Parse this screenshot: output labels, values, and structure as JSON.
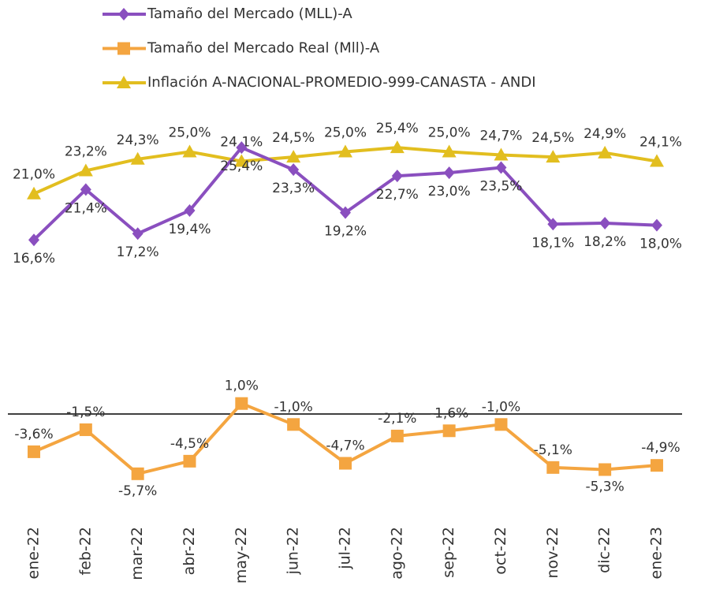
{
  "chart_data": {
    "type": "line",
    "categories": [
      "ene-22",
      "feb-22",
      "mar-22",
      "abr-22",
      "may-22",
      "jun-22",
      "jul-22",
      "ago-22",
      "sep-22",
      "oct-22",
      "nov-22",
      "dic-22",
      "ene-23"
    ],
    "ylim": [
      -10,
      30
    ],
    "series": [
      {
        "name": "Tamaño del Mercado (MLL)-A",
        "color": "#8a4fbf",
        "marker": "diamond",
        "values": [
          16.6,
          21.4,
          17.2,
          19.4,
          25.4,
          23.3,
          19.2,
          22.7,
          23.0,
          23.5,
          18.1,
          18.2,
          18.0
        ],
        "value_labels": [
          "16,6%",
          "21,4%",
          "17,2%",
          "19,4%",
          "25,4%",
          "23,3%",
          "19,2%",
          "22,7%",
          "23,0%",
          "23,5%",
          "18,1%",
          "18,2%",
          "18,0%"
        ]
      },
      {
        "name": "Tamaño del Mercado Real (Mll)-A",
        "color": "#f4a540",
        "marker": "square",
        "values": [
          -3.6,
          -1.5,
          -5.7,
          -4.5,
          1.0,
          -1.0,
          -4.7,
          -2.1,
          -1.6,
          -1.0,
          -5.1,
          -5.3,
          -4.9
        ],
        "value_labels": [
          "-3,6%",
          "-1,5%",
          "-5,7%",
          "-4,5%",
          "1,0%",
          "-1,0%",
          "-4,7%",
          "-2,1%",
          "-1,6%",
          "-1,0%",
          "-5,1%",
          "-5,3%",
          "-4,9%"
        ]
      },
      {
        "name": "Inflación A-NACIONAL-PROMEDIO-999-CANASTA - ANDI",
        "color": "#e2be1f",
        "marker": "triangle",
        "values": [
          21.0,
          23.2,
          24.3,
          25.0,
          24.1,
          24.5,
          25.0,
          25.4,
          25.0,
          24.7,
          24.5,
          24.9,
          24.1
        ],
        "value_labels": [
          "21,0%",
          "23,2%",
          "24,3%",
          "25,0%",
          "24,1%",
          "24,5%",
          "25,0%",
          "25,4%",
          "25,0%",
          "24,7%",
          "24,5%",
          "24,9%",
          "24,1%"
        ]
      }
    ]
  }
}
